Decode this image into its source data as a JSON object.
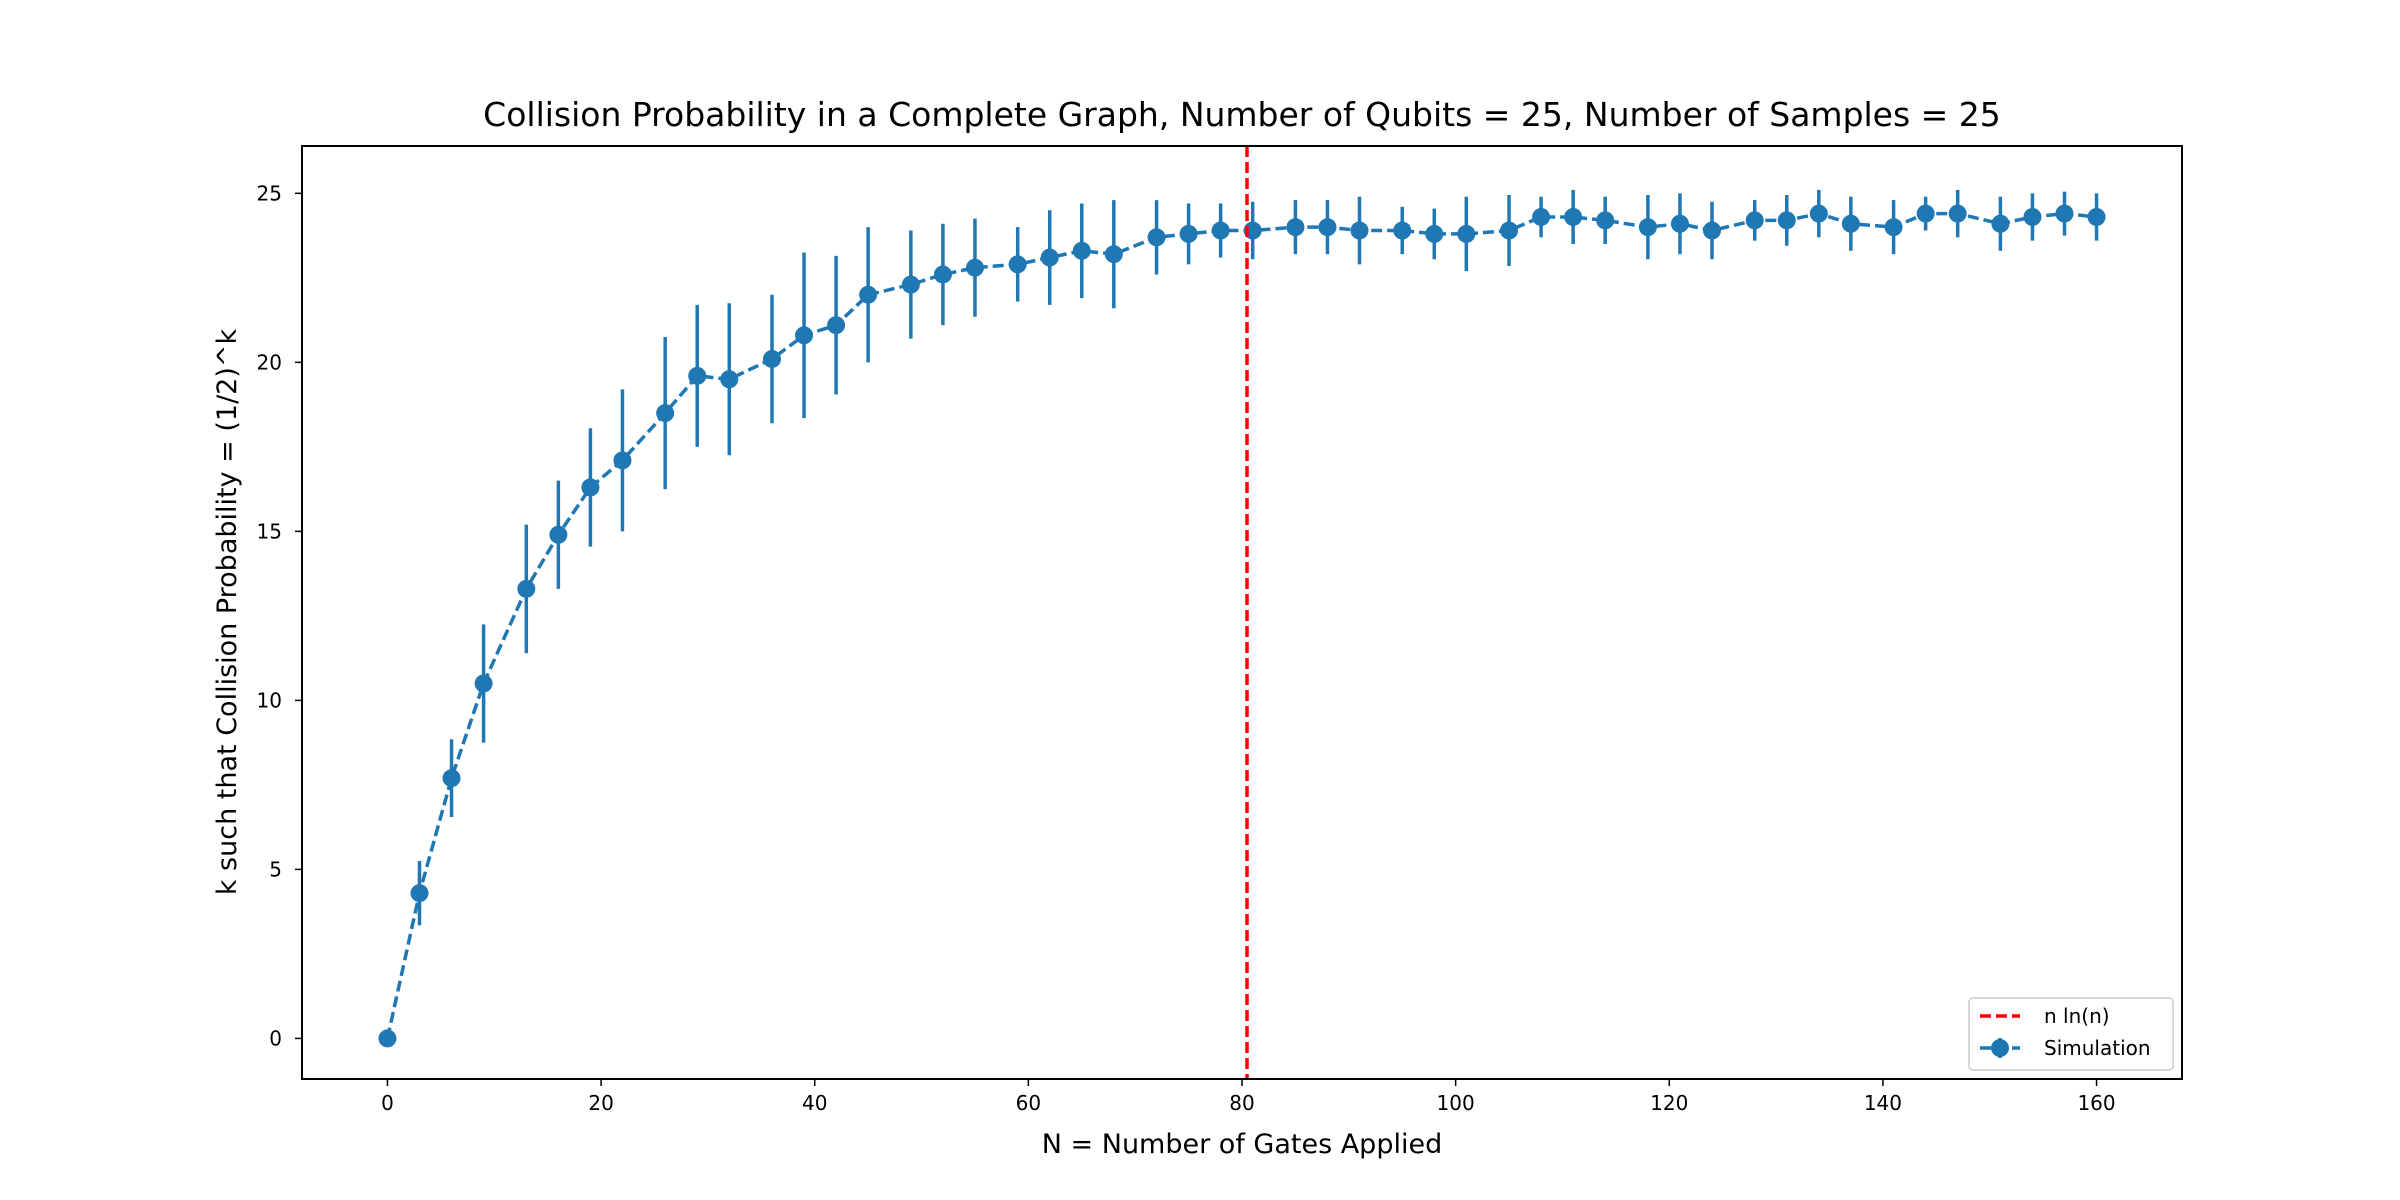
{
  "chart_data": {
    "type": "line",
    "title": "Collision Probability in a Complete Graph, Number of Qubits = 25, Number of Samples = 25",
    "xlabel": "N = Number of Gates Applied",
    "ylabel": "k such that Collision Probability = (1/2)^k",
    "xlim": [
      -8,
      168
    ],
    "ylim": [
      -1.2,
      26.4
    ],
    "xticks": [
      0,
      20,
      40,
      60,
      80,
      100,
      120,
      140,
      160
    ],
    "yticks": [
      0,
      5,
      10,
      15,
      20,
      25
    ],
    "grid": false,
    "legend_position": "bottom-right",
    "reference_line": {
      "name": "n ln(n)",
      "x": 80.47,
      "color": "#ff0000",
      "style": "dashed"
    },
    "series": [
      {
        "name": "Simulation",
        "color": "#1f77b4",
        "style": "dashed",
        "marker": "circle",
        "x": [
          0,
          3,
          6,
          9,
          13,
          16,
          19,
          22,
          26,
          29,
          32,
          36,
          39,
          42,
          45,
          49,
          52,
          55,
          59,
          62,
          65,
          68,
          72,
          75,
          78,
          81,
          85,
          88,
          91,
          95,
          98,
          101,
          105,
          108,
          111,
          114,
          118,
          121,
          124,
          128,
          131,
          134,
          137,
          141,
          144,
          147,
          151,
          154,
          157,
          160
        ],
        "y": [
          0,
          4.3,
          7.7,
          10.5,
          13.3,
          14.9,
          16.3,
          17.1,
          18.5,
          19.6,
          19.5,
          20.1,
          20.8,
          21.1,
          22.0,
          22.3,
          22.6,
          22.8,
          22.9,
          23.1,
          23.3,
          23.2,
          23.7,
          23.8,
          23.9,
          23.9,
          24.0,
          24.0,
          23.9,
          23.9,
          23.8,
          23.8,
          23.9,
          24.3,
          24.3,
          24.2,
          24.0,
          24.1,
          23.9,
          24.2,
          24.2,
          24.4,
          24.1,
          24.0,
          24.4,
          24.4,
          24.1,
          24.3,
          24.4,
          24.3
        ],
        "yerr": [
          0,
          0.95,
          1.15,
          1.75,
          1.9,
          1.6,
          1.75,
          2.1,
          2.25,
          2.1,
          2.25,
          1.9,
          2.45,
          2.05,
          2.0,
          1.6,
          1.5,
          1.45,
          1.1,
          1.4,
          1.4,
          1.6,
          1.1,
          0.9,
          0.8,
          0.85,
          0.8,
          0.8,
          1.0,
          0.7,
          0.75,
          1.1,
          1.05,
          0.6,
          0.8,
          0.7,
          0.95,
          0.9,
          0.85,
          0.6,
          0.75,
          0.7,
          0.8,
          0.8,
          0.5,
          0.7,
          0.8,
          0.7,
          0.65,
          0.7
        ]
      }
    ]
  }
}
